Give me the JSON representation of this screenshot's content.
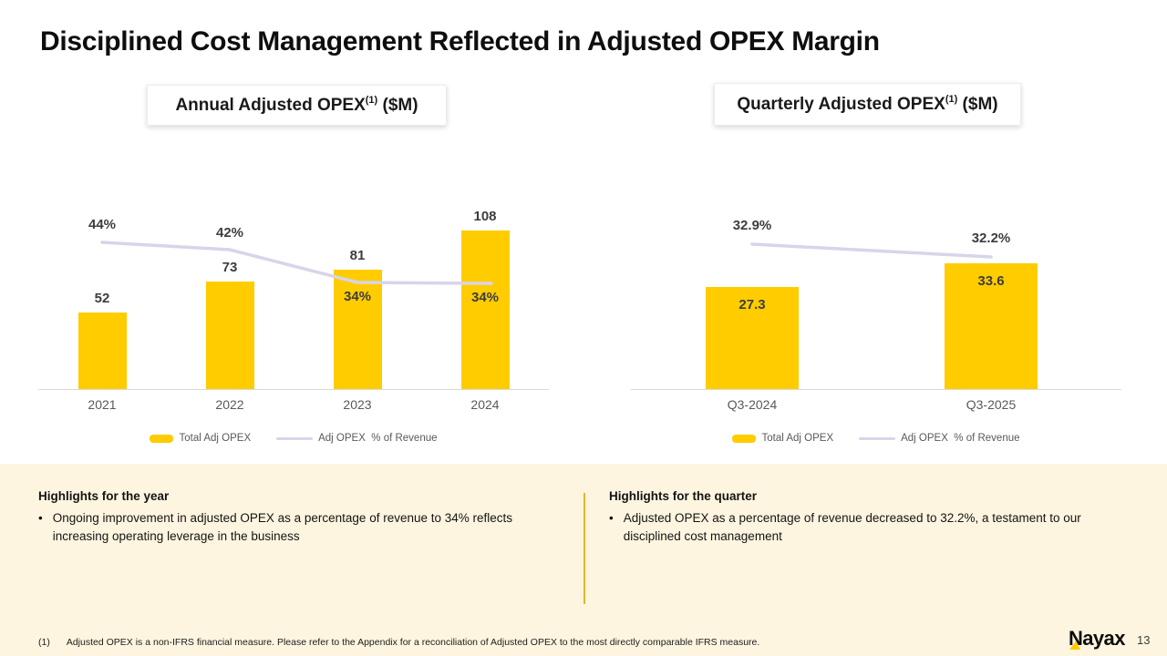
{
  "slide": {
    "title": "Disciplined Cost Management Reflected in Adjusted OPEX Margin",
    "page_number": "13",
    "logo": "Nayax",
    "bullet_glyph": "•",
    "footnote": {
      "marker": "(1)",
      "text": "Adjusted OPEX is a non-IFRS financial measure. Please refer to the Appendix for a reconciliation of Adjusted OPEX to the most directly comparable IFRS measure."
    }
  },
  "colors": {
    "bar_yellow": "#FFCC00",
    "line_lavender": "#D8D4EA",
    "band_cream": "#FDF5DF",
    "divider_gold": "#DFB52C",
    "axis_gray": "#D9D9D9",
    "value_label_dark": "#3D3D3D",
    "secondary_gray": "#595959"
  },
  "chart_data": [
    {
      "type": "bar",
      "title": "Annual Adjusted OPEX(1) ($M)",
      "header": {
        "main": "Annual Adjusted OPEX",
        "sup": "(1)",
        "unit": " ($M)"
      },
      "categories": [
        "2021",
        "2022",
        "2023",
        "2024"
      ],
      "series": [
        {
          "name": "Total Adj OPEX",
          "kind": "bar",
          "values": [
            52,
            73,
            81,
            108
          ],
          "labels": [
            "52",
            "73",
            "81",
            "108"
          ]
        },
        {
          "name": "Adj OPEX  % of Revenue",
          "kind": "line",
          "values": [
            44,
            42,
            34,
            34
          ],
          "labels": [
            "44%",
            "42%",
            "34%",
            "34%"
          ],
          "unit": "%"
        }
      ],
      "ylabel": "",
      "xlabel": "",
      "grid": false,
      "legend_position": "bottom"
    },
    {
      "type": "bar",
      "title": "Quarterly Adjusted OPEX(1) ($M)",
      "header": {
        "main": "Quarterly Adjusted OPEX",
        "sup": "(1)",
        "unit": " ($M)"
      },
      "categories": [
        "Q3-2024",
        "Q3-2025"
      ],
      "series": [
        {
          "name": "Total Adj OPEX",
          "kind": "bar",
          "values": [
            27.3,
            33.6
          ],
          "labels": [
            "27.3",
            "33.6"
          ]
        },
        {
          "name": "Adj OPEX  % of Revenue",
          "kind": "line",
          "values": [
            32.9,
            32.2
          ],
          "labels": [
            "32.9%",
            "32.2%"
          ],
          "unit": "%"
        }
      ],
      "ylabel": "",
      "xlabel": "",
      "grid": false,
      "legend_position": "bottom"
    }
  ],
  "highlights": [
    {
      "heading": "Highlights for the year",
      "bullet": "Ongoing improvement in adjusted OPEX as a percentage of revenue to 34% reflects increasing operating leverage in the business"
    },
    {
      "heading": "Highlights for the quarter",
      "bullet": "Adjusted OPEX as a percentage of revenue decreased to 32.2%, a testament to our disciplined cost management"
    }
  ]
}
